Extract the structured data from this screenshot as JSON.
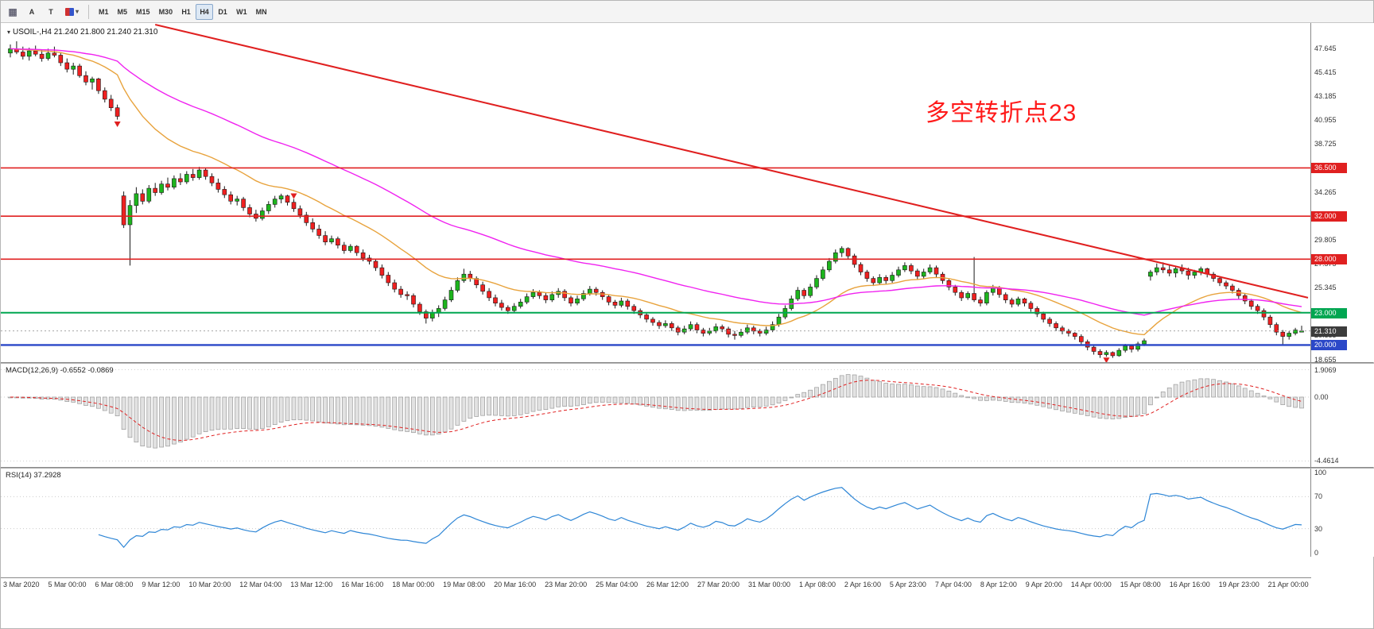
{
  "toolbar": {
    "tools": [
      {
        "name": "windows-grid",
        "label": "▦"
      },
      {
        "name": "cursor",
        "label": "A"
      },
      {
        "name": "text",
        "label": "T"
      }
    ],
    "caret": "▾",
    "timeframes": [
      {
        "label": "M1",
        "active": false
      },
      {
        "label": "M5",
        "active": false
      },
      {
        "label": "M15",
        "active": false
      },
      {
        "label": "M30",
        "active": false
      },
      {
        "label": "H1",
        "active": false
      },
      {
        "label": "H4",
        "active": true
      },
      {
        "label": "D1",
        "active": false
      },
      {
        "label": "W1",
        "active": false
      },
      {
        "label": "MN",
        "active": false
      }
    ]
  },
  "chart": {
    "symbol_dropdown_icon": "▾",
    "symbol_label": "USOIL-,H4  21.240 21.800 21.240 21.310"
  },
  "chart_data": {
    "type": "candlestick",
    "symbol": "USOIL-",
    "timeframe": "H4",
    "current_ohlc": {
      "open": "21.240",
      "high": "21.800",
      "low": "21.240",
      "close": "21.310"
    },
    "view": {
      "price_top": 50.0,
      "price_bottom": 18.4
    },
    "colors": {
      "bull": "#1db51d",
      "bear": "#ef2020",
      "wick": "#1a1a1a"
    },
    "price_axis_ticks": [
      "47.645",
      "45.415",
      "43.185",
      "40.955",
      "38.725",
      "36.495",
      "34.265",
      "32.035",
      "29.805",
      "27.575",
      "25.345",
      "23.115",
      "20.885",
      "18.655"
    ],
    "x_labels": [
      "3 Mar 2020",
      "5 Mar 00:00",
      "6 Mar 08:00",
      "9 Mar 12:00",
      "10 Mar 20:00",
      "12 Mar 04:00",
      "13 Mar 12:00",
      "16 Mar 16:00",
      "18 Mar 00:00",
      "19 Mar 08:00",
      "20 Mar 16:00",
      "23 Mar 20:00",
      "25 Mar 04:00",
      "26 Mar 12:00",
      "27 Mar 20:00",
      "31 Mar 00:00",
      "1 Apr 08:00",
      "2 Apr 16:00",
      "5 Apr 23:00",
      "7 Apr 04:00",
      "8 Apr 12:00",
      "9 Apr 20:00",
      "14 Apr 00:00",
      "15 Apr 08:00",
      "16 Apr 16:00",
      "19 Apr 23:00",
      "21 Apr 00:00"
    ],
    "ohlc": [
      [
        47.2,
        48.0,
        46.8,
        47.6
      ],
      [
        47.6,
        48.3,
        47.1,
        47.3
      ],
      [
        47.3,
        47.8,
        46.6,
        46.9
      ],
      [
        46.9,
        47.7,
        46.5,
        47.4
      ],
      [
        47.4,
        47.9,
        46.9,
        47.1
      ],
      [
        47.1,
        47.5,
        46.4,
        46.7
      ],
      [
        46.7,
        47.6,
        46.5,
        47.2
      ],
      [
        47.2,
        47.8,
        46.8,
        47.0
      ],
      [
        47.0,
        47.3,
        46.0,
        46.3
      ],
      [
        46.3,
        46.7,
        45.4,
        45.7
      ],
      [
        45.7,
        46.3,
        45.2,
        46.0
      ],
      [
        46.0,
        46.2,
        44.9,
        45.1
      ],
      [
        45.1,
        45.5,
        44.2,
        44.5
      ],
      [
        44.5,
        45.0,
        43.8,
        44.8
      ],
      [
        44.8,
        44.9,
        43.4,
        43.7
      ],
      [
        43.7,
        44.0,
        42.6,
        42.9
      ],
      [
        42.9,
        43.3,
        41.8,
        42.1
      ],
      [
        42.1,
        42.4,
        41.0,
        41.3
      ],
      [
        33.9,
        34.3,
        30.9,
        31.2
      ],
      [
        31.2,
        33.5,
        27.4,
        33.0
      ],
      [
        33.0,
        34.7,
        32.3,
        34.1
      ],
      [
        34.1,
        34.5,
        33.1,
        33.4
      ],
      [
        33.4,
        34.9,
        33.2,
        34.6
      ],
      [
        34.6,
        35.1,
        33.9,
        34.2
      ],
      [
        34.2,
        35.3,
        34.0,
        35.0
      ],
      [
        35.0,
        35.6,
        34.4,
        34.7
      ],
      [
        34.7,
        35.8,
        34.5,
        35.5
      ],
      [
        35.5,
        36.0,
        34.9,
        35.2
      ],
      [
        35.2,
        36.2,
        35.0,
        35.9
      ],
      [
        35.9,
        36.4,
        35.3,
        35.6
      ],
      [
        35.6,
        36.6,
        35.4,
        36.3
      ],
      [
        36.3,
        36.5,
        35.4,
        35.7
      ],
      [
        35.7,
        36.0,
        34.8,
        35.1
      ],
      [
        35.1,
        35.5,
        34.2,
        34.5
      ],
      [
        34.5,
        34.8,
        33.7,
        34.0
      ],
      [
        34.0,
        34.3,
        33.1,
        33.4
      ],
      [
        33.4,
        33.9,
        33.0,
        33.6
      ],
      [
        33.6,
        33.8,
        32.5,
        32.8
      ],
      [
        32.8,
        33.1,
        31.9,
        32.2
      ],
      [
        32.2,
        32.6,
        31.5,
        31.8
      ],
      [
        31.8,
        32.8,
        31.6,
        32.5
      ],
      [
        32.5,
        33.4,
        32.2,
        33.1
      ],
      [
        33.1,
        33.9,
        32.8,
        33.6
      ],
      [
        33.6,
        34.1,
        33.2,
        33.9
      ],
      [
        33.9,
        34.0,
        33.0,
        33.3
      ],
      [
        33.3,
        33.6,
        32.4,
        32.7
      ],
      [
        32.7,
        33.0,
        31.8,
        32.1
      ],
      [
        32.1,
        32.4,
        31.1,
        31.4
      ],
      [
        31.4,
        31.8,
        30.5,
        30.8
      ],
      [
        30.8,
        31.2,
        29.9,
        30.2
      ],
      [
        30.2,
        30.6,
        29.3,
        29.6
      ],
      [
        29.6,
        30.2,
        29.4,
        29.9
      ],
      [
        29.9,
        30.1,
        29.0,
        29.3
      ],
      [
        29.3,
        29.6,
        28.5,
        28.8
      ],
      [
        28.8,
        29.4,
        28.6,
        29.2
      ],
      [
        29.2,
        29.3,
        28.3,
        28.6
      ],
      [
        28.6,
        28.9,
        27.8,
        28.1
      ],
      [
        28.1,
        28.4,
        27.5,
        27.8
      ],
      [
        27.8,
        28.0,
        26.9,
        27.2
      ],
      [
        27.2,
        27.5,
        26.2,
        26.5
      ],
      [
        26.5,
        26.8,
        25.5,
        25.8
      ],
      [
        25.8,
        26.1,
        24.9,
        25.2
      ],
      [
        25.2,
        25.5,
        24.4,
        24.7
      ],
      [
        24.7,
        25.0,
        24.2,
        24.6
      ],
      [
        24.6,
        24.8,
        23.5,
        23.8
      ],
      [
        23.8,
        24.0,
        22.8,
        23.1
      ],
      [
        23.1,
        23.3,
        22.0,
        22.5
      ],
      [
        22.5,
        23.3,
        22.2,
        23.0
      ],
      [
        23.0,
        23.7,
        22.6,
        23.4
      ],
      [
        23.4,
        24.5,
        23.2,
        24.2
      ],
      [
        24.2,
        25.4,
        24.0,
        25.1
      ],
      [
        25.1,
        26.3,
        24.9,
        26.0
      ],
      [
        26.0,
        27.1,
        25.8,
        26.6
      ],
      [
        26.6,
        26.9,
        25.9,
        26.2
      ],
      [
        26.2,
        26.4,
        25.3,
        25.6
      ],
      [
        25.6,
        25.9,
        24.7,
        25.0
      ],
      [
        25.0,
        25.3,
        24.1,
        24.4
      ],
      [
        24.4,
        24.7,
        23.6,
        23.9
      ],
      [
        23.9,
        24.2,
        23.2,
        23.5
      ],
      [
        23.5,
        23.7,
        22.9,
        23.2
      ],
      [
        23.2,
        23.9,
        23.0,
        23.6
      ],
      [
        23.6,
        24.3,
        23.4,
        24.0
      ],
      [
        24.0,
        24.8,
        23.8,
        24.5
      ],
      [
        24.5,
        25.2,
        24.3,
        24.9
      ],
      [
        24.9,
        25.1,
        24.3,
        24.6
      ],
      [
        24.6,
        24.9,
        23.9,
        24.2
      ],
      [
        24.2,
        25.0,
        24.0,
        24.7
      ],
      [
        24.7,
        25.3,
        24.4,
        25.0
      ],
      [
        25.0,
        25.2,
        24.1,
        24.4
      ],
      [
        24.4,
        24.6,
        23.6,
        23.9
      ],
      [
        23.9,
        24.6,
        23.7,
        24.3
      ],
      [
        24.3,
        25.1,
        24.1,
        24.8
      ],
      [
        24.8,
        25.5,
        24.6,
        25.2
      ],
      [
        25.2,
        25.4,
        24.6,
        24.9
      ],
      [
        24.9,
        25.1,
        24.2,
        24.5
      ],
      [
        24.5,
        24.7,
        23.7,
        24.0
      ],
      [
        24.0,
        24.2,
        23.4,
        23.7
      ],
      [
        23.7,
        24.4,
        23.5,
        24.1
      ],
      [
        24.1,
        24.3,
        23.3,
        23.6
      ],
      [
        23.6,
        23.8,
        22.9,
        23.2
      ],
      [
        23.2,
        23.4,
        22.5,
        22.8
      ],
      [
        22.8,
        23.0,
        22.1,
        22.4
      ],
      [
        22.4,
        22.6,
        21.8,
        22.1
      ],
      [
        22.1,
        22.3,
        21.5,
        21.8
      ],
      [
        21.8,
        22.3,
        21.6,
        22.0
      ],
      [
        22.0,
        22.2,
        21.3,
        21.6
      ],
      [
        21.6,
        21.8,
        20.9,
        21.2
      ],
      [
        21.2,
        21.8,
        21.0,
        21.5
      ],
      [
        21.5,
        22.2,
        21.3,
        21.9
      ],
      [
        21.9,
        22.1,
        21.1,
        21.4
      ],
      [
        21.4,
        21.6,
        20.8,
        21.1
      ],
      [
        21.1,
        21.6,
        20.9,
        21.3
      ],
      [
        21.3,
        22.0,
        21.1,
        21.7
      ],
      [
        21.7,
        21.9,
        21.2,
        21.5
      ],
      [
        21.5,
        21.7,
        20.7,
        21.0
      ],
      [
        21.0,
        21.3,
        20.5,
        20.9
      ],
      [
        20.9,
        21.5,
        20.7,
        21.2
      ],
      [
        21.2,
        21.9,
        21.0,
        21.6
      ],
      [
        21.6,
        21.8,
        21.0,
        21.3
      ],
      [
        21.3,
        21.5,
        20.8,
        21.1
      ],
      [
        21.1,
        21.7,
        20.9,
        21.4
      ],
      [
        21.4,
        22.2,
        21.2,
        21.9
      ],
      [
        21.9,
        22.9,
        21.7,
        22.6
      ],
      [
        22.6,
        23.7,
        22.4,
        23.4
      ],
      [
        23.4,
        24.6,
        23.2,
        24.3
      ],
      [
        24.3,
        25.4,
        24.1,
        25.1
      ],
      [
        25.1,
        25.3,
        24.3,
        24.6
      ],
      [
        24.6,
        25.7,
        24.4,
        25.4
      ],
      [
        25.4,
        26.5,
        25.2,
        26.2
      ],
      [
        26.2,
        27.3,
        26.0,
        27.0
      ],
      [
        27.0,
        28.1,
        26.8,
        27.8
      ],
      [
        27.8,
        28.9,
        27.6,
        28.6
      ],
      [
        28.6,
        29.2,
        28.2,
        29.0
      ],
      [
        29.0,
        29.1,
        28.0,
        28.3
      ],
      [
        28.3,
        28.5,
        27.2,
        27.5
      ],
      [
        27.5,
        27.7,
        26.5,
        26.8
      ],
      [
        26.8,
        27.0,
        25.9,
        26.2
      ],
      [
        26.2,
        26.4,
        25.5,
        25.8
      ],
      [
        25.8,
        26.6,
        25.6,
        26.3
      ],
      [
        26.3,
        26.5,
        25.7,
        26.0
      ],
      [
        26.0,
        26.8,
        25.8,
        26.5
      ],
      [
        26.5,
        27.3,
        26.3,
        27.0
      ],
      [
        27.0,
        27.7,
        26.8,
        27.4
      ],
      [
        27.4,
        27.6,
        26.6,
        26.9
      ],
      [
        26.9,
        27.1,
        26.1,
        26.4
      ],
      [
        26.4,
        27.1,
        26.2,
        26.8
      ],
      [
        26.8,
        27.5,
        26.6,
        27.2
      ],
      [
        27.2,
        27.4,
        26.3,
        26.6
      ],
      [
        26.6,
        26.8,
        25.7,
        26.0
      ],
      [
        26.0,
        26.2,
        25.1,
        25.4
      ],
      [
        25.4,
        25.6,
        24.6,
        24.9
      ],
      [
        24.9,
        25.1,
        24.1,
        24.4
      ],
      [
        24.4,
        25.0,
        24.2,
        24.8
      ],
      [
        24.8,
        28.2,
        24.0,
        24.2
      ],
      [
        24.2,
        24.5,
        23.6,
        23.9
      ],
      [
        23.9,
        25.1,
        23.7,
        24.9
      ],
      [
        24.9,
        25.6,
        24.6,
        25.3
      ],
      [
        25.3,
        25.5,
        24.4,
        24.7
      ],
      [
        24.7,
        24.9,
        23.9,
        24.2
      ],
      [
        24.2,
        24.4,
        23.5,
        23.8
      ],
      [
        23.8,
        24.5,
        23.6,
        24.3
      ],
      [
        24.3,
        24.4,
        23.6,
        23.9
      ],
      [
        23.9,
        24.1,
        23.1,
        23.4
      ],
      [
        23.4,
        23.6,
        22.6,
        22.9
      ],
      [
        22.9,
        23.1,
        22.1,
        22.4
      ],
      [
        22.4,
        22.6,
        21.7,
        22.0
      ],
      [
        22.0,
        22.2,
        21.3,
        21.6
      ],
      [
        21.6,
        21.8,
        21.0,
        21.3
      ],
      [
        21.3,
        21.5,
        20.8,
        21.1
      ],
      [
        21.1,
        21.2,
        20.5,
        20.8
      ],
      [
        20.8,
        21.0,
        20.0,
        20.3
      ],
      [
        20.3,
        20.5,
        19.5,
        19.8
      ],
      [
        19.8,
        20.0,
        19.1,
        19.4
      ],
      [
        19.4,
        19.6,
        18.8,
        19.1
      ],
      [
        19.1,
        19.5,
        18.9,
        19.3
      ],
      [
        19.3,
        19.4,
        18.8,
        19.0
      ],
      [
        19.0,
        19.7,
        18.9,
        19.5
      ],
      [
        19.5,
        20.1,
        19.3,
        19.9
      ],
      [
        19.9,
        20.0,
        19.3,
        19.6
      ],
      [
        19.6,
        20.3,
        19.4,
        20.1
      ],
      [
        20.1,
        20.6,
        19.9,
        20.4
      ],
      [
        26.4,
        27.0,
        26.0,
        26.8
      ],
      [
        26.8,
        27.6,
        26.5,
        27.2
      ],
      [
        27.2,
        27.7,
        26.7,
        27.0
      ],
      [
        27.0,
        27.4,
        26.4,
        26.7
      ],
      [
        26.7,
        27.3,
        26.3,
        27.1
      ],
      [
        27.1,
        27.5,
        26.6,
        26.9
      ],
      [
        26.9,
        27.2,
        26.1,
        26.5
      ],
      [
        26.5,
        27.0,
        26.2,
        26.8
      ],
      [
        26.8,
        27.3,
        26.5,
        27.1
      ],
      [
        27.1,
        27.2,
        26.3,
        26.6
      ],
      [
        26.6,
        26.8,
        25.9,
        26.2
      ],
      [
        26.2,
        26.4,
        25.5,
        25.8
      ],
      [
        25.8,
        26.0,
        25.2,
        25.5
      ],
      [
        25.5,
        25.7,
        24.8,
        25.1
      ],
      [
        25.1,
        25.3,
        24.3,
        24.6
      ],
      [
        24.6,
        24.8,
        23.8,
        24.1
      ],
      [
        24.1,
        24.3,
        23.3,
        23.6
      ],
      [
        23.6,
        23.8,
        22.9,
        23.2
      ],
      [
        23.2,
        23.4,
        22.3,
        22.6
      ],
      [
        22.6,
        22.8,
        21.6,
        21.9
      ],
      [
        21.9,
        22.1,
        20.9,
        21.2
      ],
      [
        21.2,
        21.4,
        20.0,
        20.8
      ],
      [
        20.8,
        21.3,
        20.5,
        21.1
      ],
      [
        21.1,
        21.6,
        20.9,
        21.4
      ],
      [
        21.24,
        21.8,
        21.24,
        21.31
      ]
    ],
    "overlays": {
      "ma_fast": {
        "type": "ema",
        "period": 21,
        "color": "#e8a33d"
      },
      "ma_slow": {
        "type": "ema",
        "period": 55,
        "color": "#f022f0"
      },
      "trendline": {
        "from_bar": 23,
        "from_price": 49.85,
        "to_bar": 206,
        "to_price": 24.4,
        "color": "#e02020"
      },
      "hlines": [
        {
          "price": 36.5,
          "label": "36.500",
          "color": "#e02020",
          "width": 1.6
        },
        {
          "price": 32.0,
          "label": "32.000",
          "color": "#e02020",
          "width": 1.6
        },
        {
          "price": 28.0,
          "label": "28.000",
          "color": "#e02020",
          "width": 1.6
        },
        {
          "price": 23.0,
          "label": "23.000",
          "color": "#00a651",
          "width": 2
        },
        {
          "price": 20.0,
          "label": "20.000",
          "color": "#2b48c8",
          "width": 2.4
        }
      ],
      "markers": [
        {
          "bar": 17,
          "price": 40.6
        },
        {
          "bar": 45,
          "price": 33.9
        },
        {
          "bar": 174,
          "price": 18.6
        }
      ],
      "current_price": {
        "value": 21.31,
        "label": "21.310",
        "badge_color": "#3c3c3c"
      }
    },
    "indicators": {
      "macd": {
        "label": "MACD(12,26,9) -0.6552 -0.0869",
        "fast": 12,
        "slow": 26,
        "signal": 9,
        "main_value": "-0.6552",
        "signal_value": "-0.0869",
        "axis_ticks": [
          1.9069,
          0,
          -4.4614
        ],
        "axis_tick_labels": [
          "1.9069",
          "0.00",
          "-4.4614"
        ],
        "histogram_color": "#e2e2e2",
        "histogram_border": "#9a9a9a",
        "signal_color": "#e02020"
      },
      "rsi": {
        "label": "RSI(14) 37.2928",
        "period": 14,
        "value": "37.2928",
        "levels": [
          70,
          30
        ],
        "axis_ticks": [
          100,
          70,
          30,
          0
        ],
        "axis_tick_labels": [
          "100",
          "70",
          "30",
          "0"
        ],
        "line_color": "#2e86d6"
      }
    },
    "annotation": {
      "text": "多空转折点23",
      "color": "#ff1a1a"
    }
  }
}
